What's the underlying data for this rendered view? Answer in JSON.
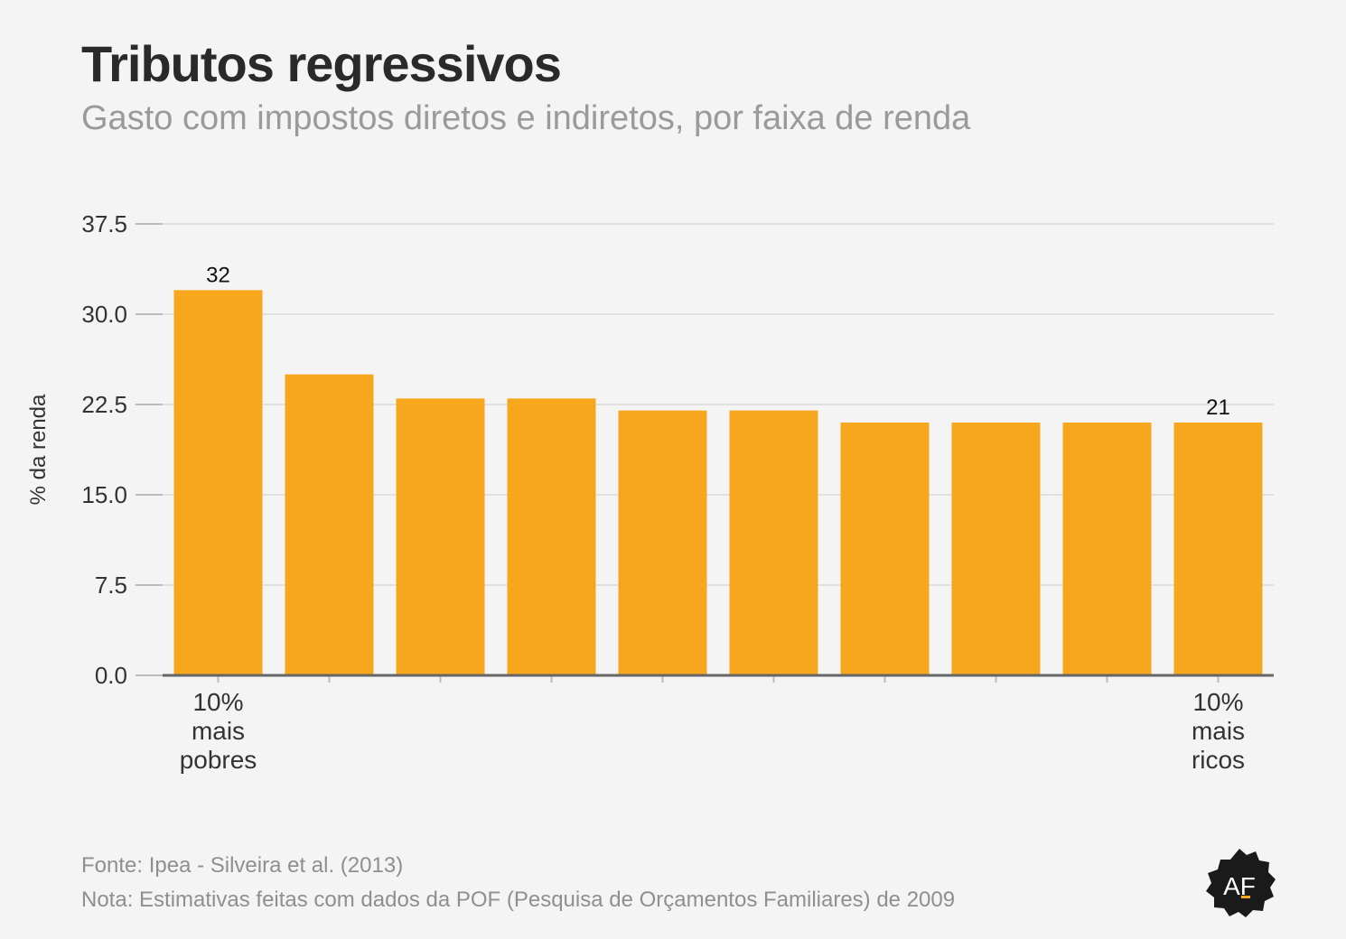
{
  "title": "Tributos regressivos",
  "subtitle": "Gasto com impostos diretos e indiretos, por faixa de renda",
  "footer": {
    "source": "Fonte: Ipea - Silveira et al. (2013)",
    "note": "Nota: Estimativas feitas com dados da POF (Pesquisa de Orçamentos Familiares) de 2009"
  },
  "logo": {
    "text": "AF"
  },
  "colors": {
    "bar": "#f7a71e",
    "grid": "#e0e0e0",
    "axis": "#666666",
    "text": "#333333"
  },
  "chart_data": {
    "type": "bar",
    "ylabel": "% da renda",
    "xlabel": "",
    "ylim": [
      0,
      37.5
    ],
    "yticks": [
      "0.0",
      "7.5",
      "15.0",
      "22.5",
      "30.0",
      "37.5"
    ],
    "categories": [
      [
        "10%",
        "mais",
        "pobres"
      ],
      [],
      [],
      [],
      [],
      [],
      [],
      [],
      [],
      [
        "10%",
        "mais",
        "ricos"
      ]
    ],
    "values": [
      32,
      25,
      23,
      23,
      22,
      22,
      21,
      21,
      21,
      21
    ],
    "data_labels": [
      "32",
      "",
      "",
      "",
      "",
      "",
      "",
      "",
      "",
      "21"
    ],
    "grid": true,
    "legend": "none"
  }
}
